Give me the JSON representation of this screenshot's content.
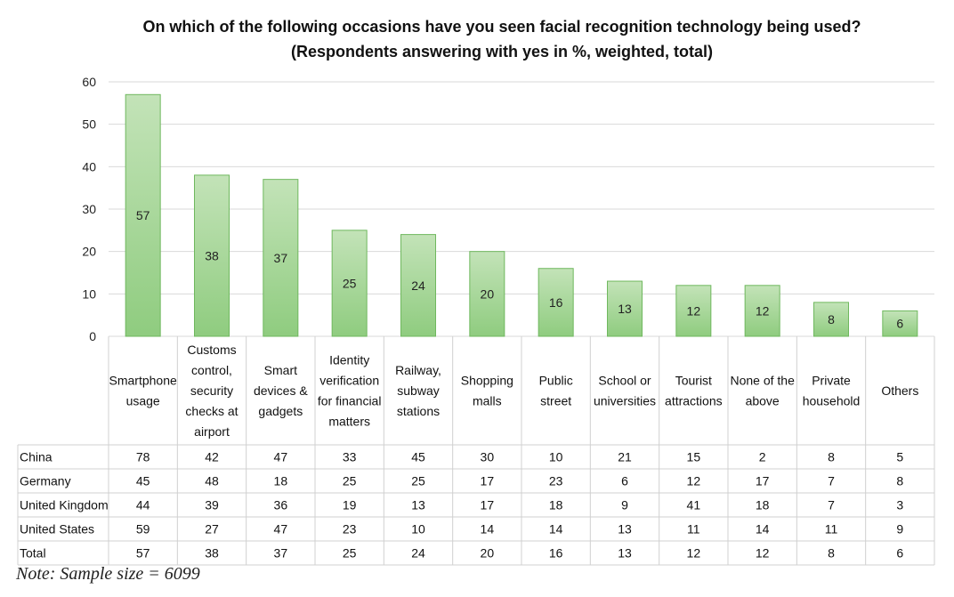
{
  "chart_data": {
    "type": "bar",
    "title": "On which of the following occasions have you seen facial recognition technology being used?",
    "subtitle": "(Respondents answering with yes in %, weighted, total)",
    "ylim": [
      0,
      60
    ],
    "yticks": [
      "0",
      "10",
      "20",
      "30",
      "40",
      "50",
      "60"
    ],
    "bar_color": "#a8d69a",
    "categories": [
      [
        "Smartphone",
        "usage"
      ],
      [
        "Customs",
        "control,",
        "security",
        "checks at",
        "airport"
      ],
      [
        "Smart",
        "devices &",
        "gadgets"
      ],
      [
        "Identity",
        "verification",
        "for financial",
        "matters"
      ],
      [
        "Railway,",
        "subway",
        "stations"
      ],
      [
        "Shopping",
        "malls"
      ],
      [
        "Public",
        "street"
      ],
      [
        "School or",
        "universities"
      ],
      [
        "Tourist",
        "attractions"
      ],
      [
        "None of the",
        "above"
      ],
      [
        "Private",
        "household"
      ],
      [
        "Others"
      ]
    ],
    "values": [
      57,
      38,
      37,
      25,
      24,
      20,
      16,
      13,
      12,
      12,
      8,
      6
    ],
    "table": [
      {
        "name": "China",
        "values": [
          78,
          42,
          47,
          33,
          45,
          30,
          10,
          21,
          15,
          2,
          8,
          5
        ]
      },
      {
        "name": "Germany",
        "values": [
          45,
          48,
          18,
          25,
          25,
          17,
          23,
          6,
          12,
          17,
          7,
          8
        ]
      },
      {
        "name": "United Kingdom",
        "values": [
          44,
          39,
          36,
          19,
          13,
          17,
          18,
          9,
          41,
          18,
          7,
          3
        ]
      },
      {
        "name": "United States",
        "values": [
          59,
          27,
          47,
          23,
          10,
          14,
          14,
          13,
          11,
          14,
          11,
          9
        ]
      },
      {
        "name": "Total",
        "values": [
          57,
          38,
          37,
          25,
          24,
          20,
          16,
          13,
          12,
          12,
          8,
          6
        ]
      }
    ]
  },
  "note": "Note: Sample size = 6099"
}
